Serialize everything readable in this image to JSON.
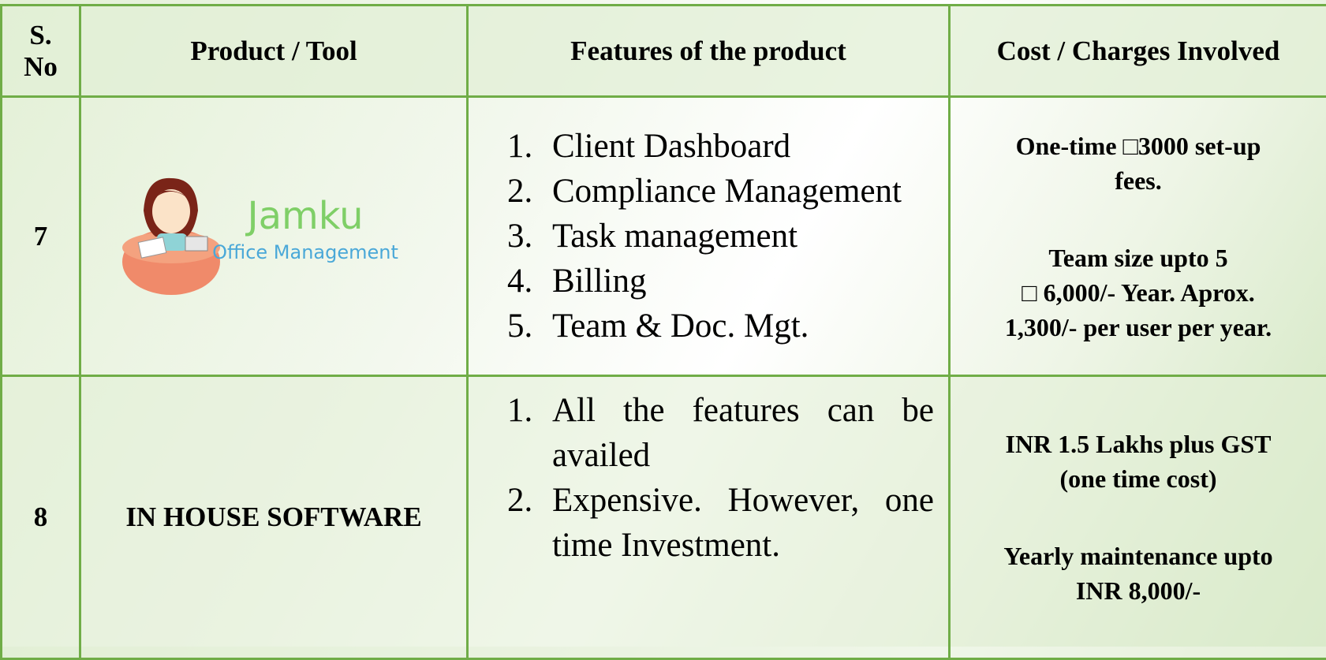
{
  "table": {
    "header": [
      "S. No",
      "Product / Tool",
      "Features of the product",
      "Cost / Charges Involved"
    ],
    "rows": [
      {
        "sno": "7",
        "product": {
          "logo_title": "Jamku",
          "logo_subtitle": "Office Management"
        },
        "features": [
          "Client Dashboard",
          "Compliance Management",
          "Task management",
          "Billing",
          "Team & Doc. Mgt."
        ],
        "cost": [
          [
            "One-time □3000 set-up",
            "fees."
          ],
          [
            "Team size upto 5",
            "□ 6,000/- Year. Aprox.",
            "1,300/- per user per year."
          ]
        ]
      },
      {
        "sno": "8",
        "product": {
          "name": "IN HOUSE SOFTWARE"
        },
        "features": [
          "All the features can be availed",
          "Expensive. However, one time Investment."
        ],
        "cost": [
          [
            "INR 1.5 Lakhs plus GST",
            "(one time cost)"
          ],
          [
            "Yearly maintenance upto",
            "INR 8,000/-"
          ]
        ]
      }
    ]
  }
}
